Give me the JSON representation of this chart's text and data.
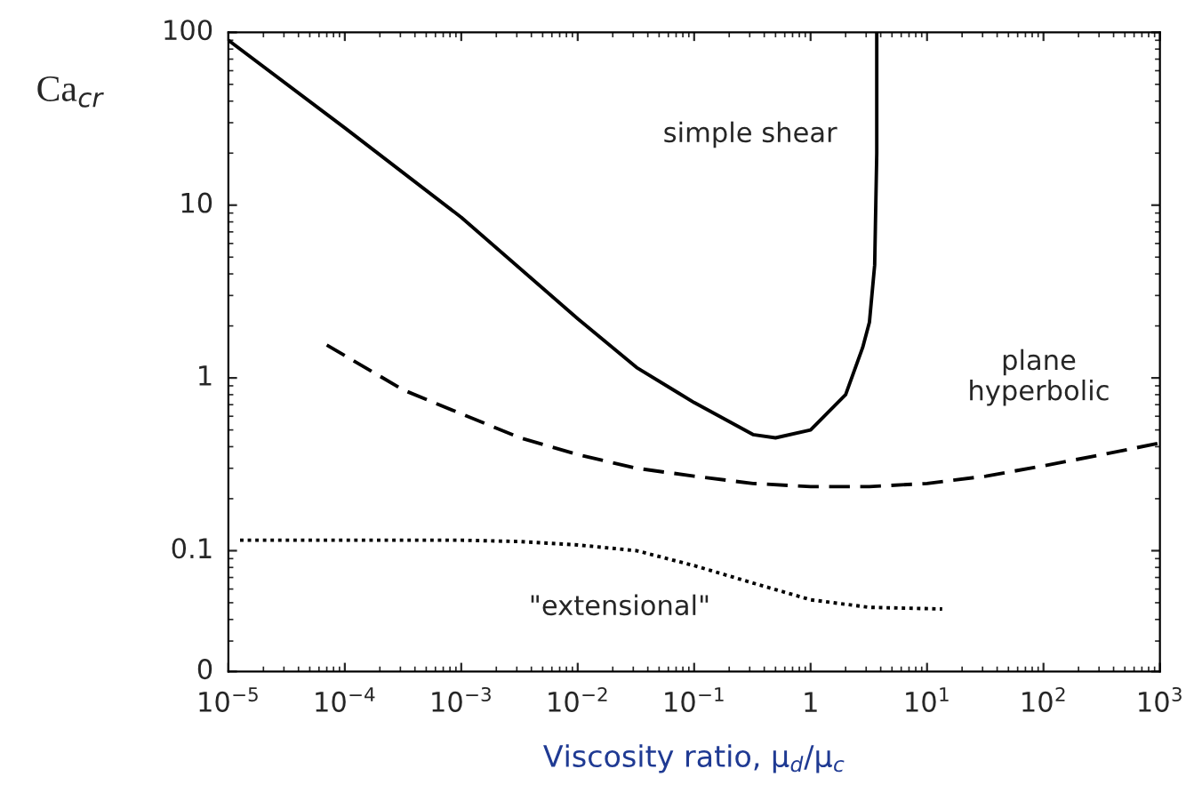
{
  "chart_data": {
    "type": "line",
    "ylabel": "Ca$_{cr}$",
    "xlabel": "Viscosity ratio, μ$_{d}$/μ$_{c}$",
    "log": "xy",
    "grid": false,
    "legend": false,
    "marker": "none",
    "xlim": [
      1e-05,
      1000
    ],
    "ylim": [
      0.02,
      100
    ],
    "xticks": [
      {
        "value": 1e-05,
        "label": "10$^{−5}$"
      },
      {
        "value": 0.0001,
        "label": "10$^{−4}$"
      },
      {
        "value": 0.001,
        "label": "10$^{−3}$"
      },
      {
        "value": 0.01,
        "label": "10$^{−2}$"
      },
      {
        "value": 0.1,
        "label": "10$^{−1}$"
      },
      1,
      {
        "value": 10,
        "label": "10$^{1}$"
      },
      {
        "value": 100,
        "label": "10$^{2}$"
      },
      {
        "value": 1000,
        "label": "10$^{3}$"
      }
    ],
    "yticks": [
      {
        "value": 0.02,
        "label": "0"
      },
      0.1,
      1,
      10,
      100
    ],
    "series": [
      {
        "color": "#000000",
        "line_style": "solid",
        "x": [
          1e-05,
          0.0001,
          0.001,
          0.01,
          0.032,
          0.1,
          0.32,
          0.5,
          1,
          2,
          2.8,
          3.2,
          3.55,
          3.7,
          3.7
        ],
        "values": [
          90,
          28,
          8.5,
          2.2,
          1.15,
          0.72,
          0.47,
          0.45,
          0.5,
          0.8,
          1.5,
          2.1,
          4.5,
          20,
          100
        ]
      },
      {
        "color": "#000000",
        "line_style": "dashed",
        "x": [
          7e-05,
          0.00032,
          0.001,
          0.0032,
          0.01,
          0.032,
          0.1,
          0.32,
          1,
          3.2,
          10,
          32,
          100,
          320,
          1000
        ],
        "values": [
          1.55,
          0.85,
          0.62,
          0.45,
          0.36,
          0.3,
          0.27,
          0.245,
          0.235,
          0.235,
          0.245,
          0.27,
          0.31,
          0.36,
          0.42
        ]
      },
      {
        "color": "#000000",
        "line_style": "dotted",
        "x": [
          1.26e-05,
          0.0001,
          0.001,
          0.0032,
          0.01,
          0.032,
          0.1,
          0.32,
          1,
          3.2,
          13.5
        ],
        "values": [
          0.115,
          0.115,
          0.115,
          0.113,
          0.108,
          0.1,
          0.082,
          0.065,
          0.052,
          0.047,
          0.046
        ]
      }
    ],
    "annotations": [
      "simple shear",
      "plane\nhyperbolic",
      "\"extensional\""
    ]
  }
}
